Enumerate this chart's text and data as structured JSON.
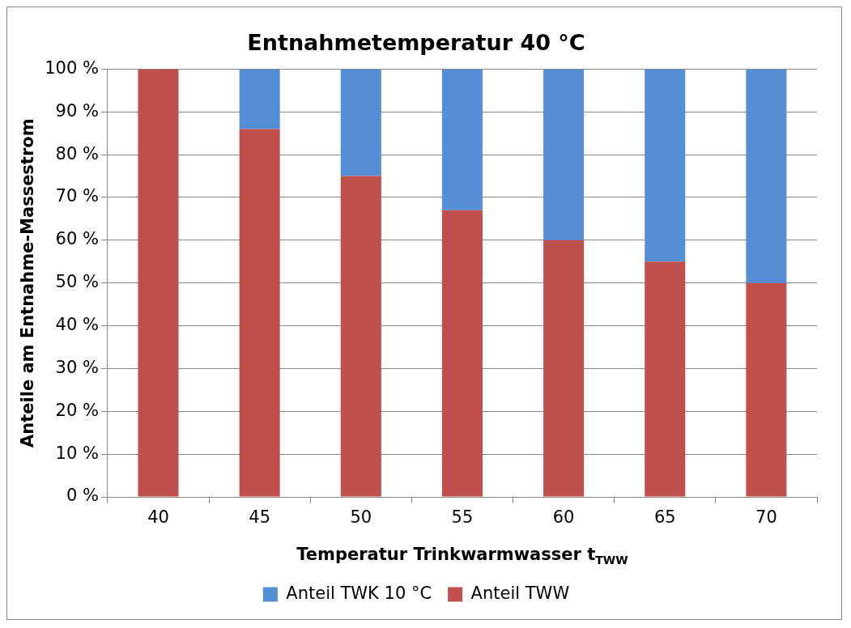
{
  "chart_data": {
    "type": "bar",
    "title": "Entnahmetemperatur 40 °C",
    "xlabel": "Temperatur Trinkwarmwasser t$_{TWW}$",
    "ylabel": "Anteile am Entnahme-Massestrom",
    "categories": [
      "40",
      "45",
      "50",
      "55",
      "60",
      "65",
      "70"
    ],
    "stacked": true,
    "series": [
      {
        "name": "Anteil TWW",
        "color": "#c0504d",
        "values": [
          100,
          86,
          75,
          67,
          60,
          55,
          50
        ]
      },
      {
        "name": "Anteil TWK 10 °C",
        "color": "#558ed5",
        "values": [
          0,
          14,
          25,
          33,
          40,
          45,
          50
        ]
      }
    ],
    "ylim": [
      0,
      100
    ],
    "yticks": [
      {
        "value": 0,
        "label": "0 %"
      },
      {
        "value": 10,
        "label": "10 %"
      },
      {
        "value": 20,
        "label": "20 %"
      },
      {
        "value": 30,
        "label": "30 %"
      },
      {
        "value": 40,
        "label": "40 %"
      },
      {
        "value": 50,
        "label": "50 %"
      },
      {
        "value": 60,
        "label": "60 %"
      },
      {
        "value": 70,
        "label": "70 %"
      },
      {
        "value": 80,
        "label": "80 %"
      },
      {
        "value": 90,
        "label": "90 %"
      },
      {
        "value": 100,
        "label": "100 %"
      }
    ],
    "grid": "y",
    "legend": "bottom"
  }
}
